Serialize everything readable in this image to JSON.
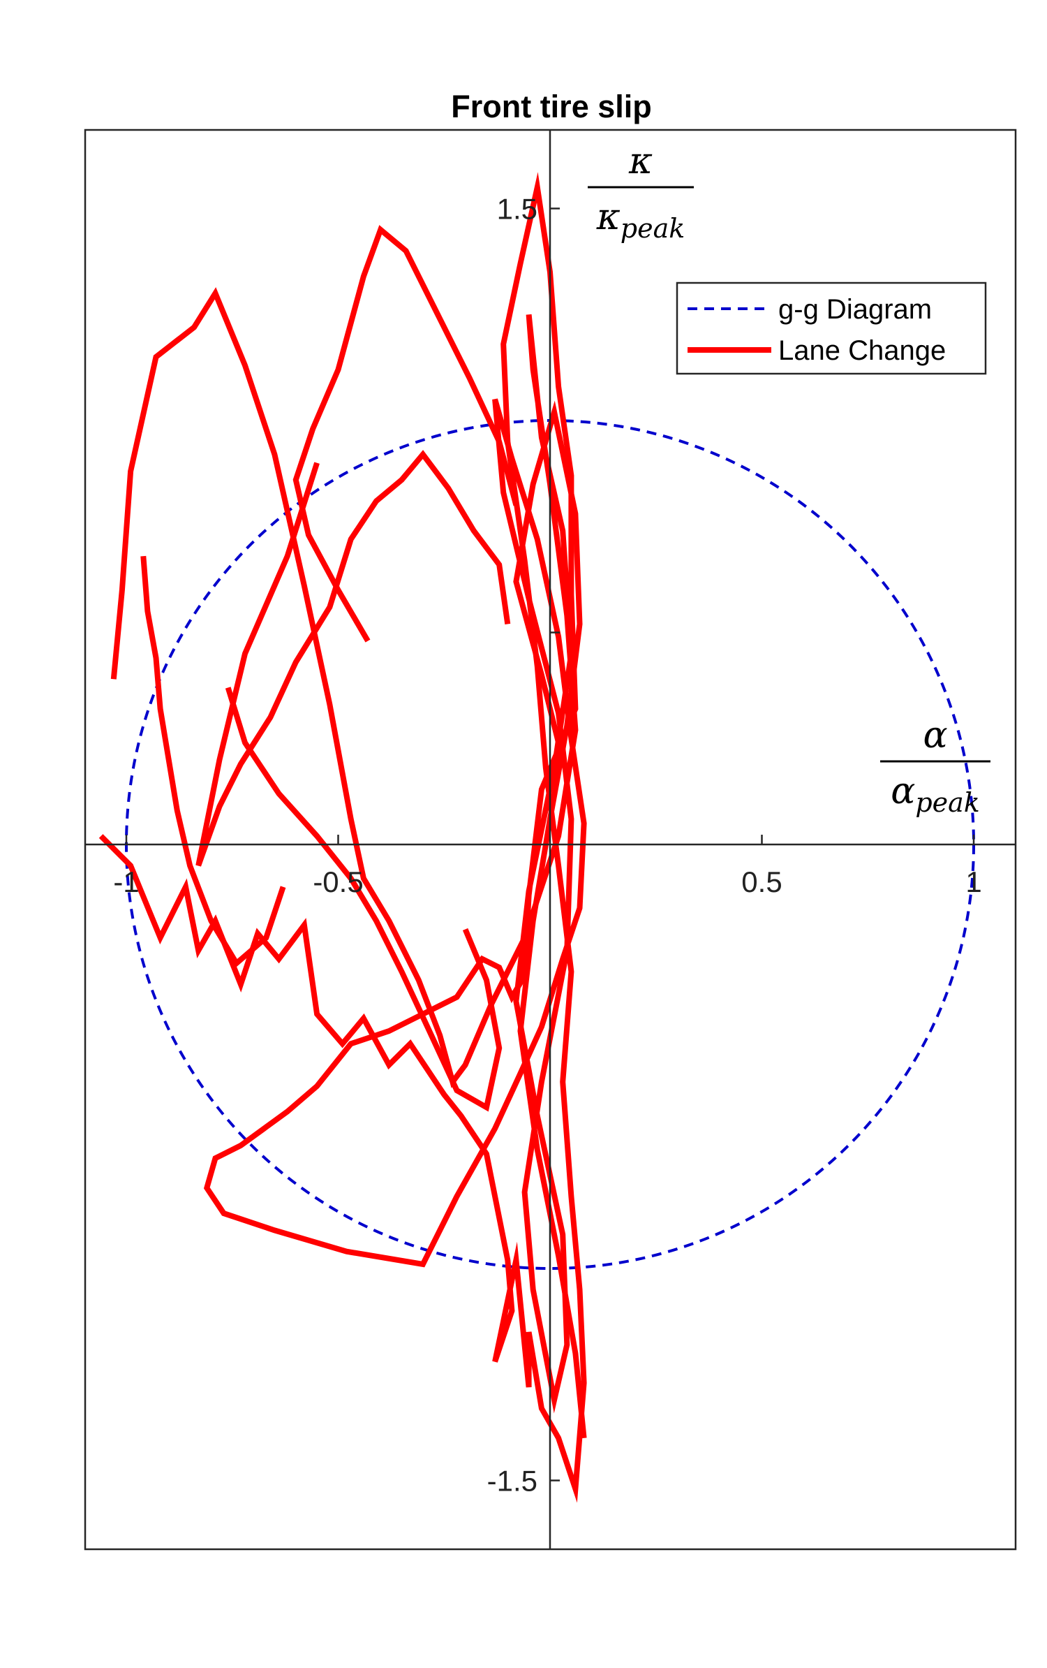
{
  "chart_data": {
    "type": "line",
    "title": "Front tire slip",
    "xlabel": {
      "numerator": "α",
      "denominator_base": "α",
      "denominator_sub": "peak"
    },
    "ylabel": {
      "numerator": "κ",
      "denominator_base": "κ",
      "denominator_sub": "peak"
    },
    "xlim": [
      -1.1,
      1.1
    ],
    "ylim": [
      -1.7,
      1.7
    ],
    "axes_location": "origin",
    "grid": false,
    "legend_position": "top-right",
    "x_ticks": [
      {
        "value": -1,
        "label": "-1"
      },
      {
        "value": -0.5,
        "label": "-0.5"
      },
      {
        "value": 0.5,
        "label": "0.5"
      },
      {
        "value": 1,
        "label": "1"
      }
    ],
    "y_ticks": [
      {
        "value": 1.5,
        "label": "1.5"
      },
      {
        "value": 0.5,
        "label": ""
      },
      {
        "value": -1.5,
        "label": "-1.5"
      }
    ],
    "series": [
      {
        "name": "g-g Diagram",
        "style": "dashed",
        "color": "#0000cc",
        "shape": "ellipse",
        "center": [
          0.0,
          0.0
        ],
        "radius_x": 1.0,
        "radius_y": 1.0
      },
      {
        "name": "Lane Change",
        "style": "solid",
        "color": "#ff0000",
        "x": [
          -1.06,
          -0.99,
          -0.92,
          -0.86,
          -0.83,
          -0.79,
          -0.73,
          -0.69,
          -0.64,
          -0.58,
          -0.55,
          -0.49,
          -0.44,
          -0.38,
          -0.33,
          -0.25,
          -0.21,
          -0.15,
          -0.1,
          -0.09,
          -0.13,
          -0.08,
          -0.05,
          -0.05,
          -0.02,
          0.02,
          0.06,
          0.08,
          0.07,
          0.05,
          0.03,
          0.05,
          0.02,
          -0.01,
          -0.03,
          -0.06,
          -0.1,
          -0.11,
          -0.07,
          -0.03,
          0.0,
          0.02,
          0.05,
          0.05,
          0.06,
          -0.02,
          -0.05,
          -0.06,
          -0.09,
          -0.12,
          -0.16,
          -0.22,
          -0.3,
          -0.38,
          -0.47,
          -0.55,
          -0.62,
          -0.73,
          -0.79,
          -0.81,
          -0.77,
          -0.65,
          -0.48,
          -0.3,
          -0.22,
          -0.13,
          -0.07,
          -0.02,
          0.03,
          0.07,
          0.08,
          0.05,
          0.02,
          -0.03,
          -0.09,
          -0.13,
          -0.11,
          -0.05,
          0.02,
          0.05,
          0.04,
          -0.02,
          -0.06,
          -0.04,
          0.01,
          0.04,
          0.03,
          -0.03,
          -0.08,
          -0.05,
          0.01,
          0.05,
          0.03,
          -0.02,
          -0.05,
          -0.04,
          0.0,
          0.04,
          0.06,
          0.02,
          -0.06,
          -0.14,
          -0.2,
          -0.23,
          -0.26,
          -0.31,
          -0.38,
          -0.44,
          -0.47,
          -0.52,
          -0.58,
          -0.65,
          -0.72,
          -0.79,
          -0.84,
          -0.93,
          -0.99,
          -1.01,
          -1.03
        ],
        "y": [
          0.02,
          -0.05,
          -0.22,
          -0.1,
          -0.25,
          -0.18,
          -0.33,
          -0.21,
          -0.27,
          -0.19,
          -0.4,
          -0.47,
          -0.41,
          -0.52,
          -0.47,
          -0.59,
          -0.64,
          -0.73,
          -0.98,
          -1.1,
          -1.22,
          -0.98,
          -1.28,
          -1.15,
          -1.33,
          -1.4,
          -1.52,
          -1.27,
          -1.05,
          -0.83,
          -0.56,
          -0.3,
          -0.05,
          0.18,
          0.42,
          0.67,
          0.95,
          1.18,
          1.37,
          1.55,
          1.35,
          1.08,
          0.87,
          0.59,
          0.32,
          0.13,
          -0.12,
          -0.31,
          -0.36,
          -0.29,
          -0.27,
          -0.36,
          -0.4,
          -0.44,
          -0.47,
          -0.57,
          -0.63,
          -0.71,
          -0.74,
          -0.81,
          -0.87,
          -0.91,
          -0.96,
          -0.99,
          -0.83,
          -0.67,
          -0.54,
          -0.43,
          -0.27,
          -0.15,
          0.05,
          0.25,
          0.49,
          0.72,
          0.91,
          1.05,
          0.83,
          0.58,
          0.31,
          0.06,
          -0.25,
          -0.56,
          -0.82,
          -1.05,
          -1.31,
          -1.18,
          -0.92,
          -0.64,
          -0.37,
          -0.11,
          0.18,
          0.45,
          0.74,
          0.96,
          1.25,
          1.12,
          0.85,
          0.54,
          0.27,
          0.02,
          -0.22,
          -0.38,
          -0.52,
          -0.56,
          -0.45,
          -0.32,
          -0.18,
          -0.08,
          0.06,
          0.33,
          0.61,
          0.92,
          1.13,
          1.3,
          1.22,
          1.15,
          0.88,
          0.6,
          0.39
        ],
        "extra_paths": [
          {
            "x": [
              -0.55,
              -0.62,
              -0.72,
              -0.78,
              -0.83,
              -0.78,
              -0.73,
              -0.66,
              -0.6,
              -0.52,
              -0.47,
              -0.41,
              -0.35,
              -0.3,
              -0.24,
              -0.18,
              -0.12,
              -0.1
            ],
            "y": [
              0.9,
              0.68,
              0.45,
              0.2,
              -0.05,
              0.09,
              0.19,
              0.3,
              0.43,
              0.56,
              0.72,
              0.81,
              0.86,
              0.92,
              0.84,
              0.74,
              0.66,
              0.52
            ]
          },
          {
            "x": [
              -0.43,
              -0.5,
              -0.57,
              -0.6,
              -0.56,
              -0.5,
              -0.44,
              -0.4,
              -0.34,
              -0.27,
              -0.19,
              -0.12,
              -0.08
            ],
            "y": [
              0.48,
              0.6,
              0.73,
              0.86,
              0.98,
              1.12,
              1.34,
              1.45,
              1.4,
              1.26,
              1.1,
              0.95,
              0.8
            ]
          },
          {
            "x": [
              -0.2,
              -0.15,
              -0.12,
              -0.15,
              -0.22,
              -0.28,
              -0.35,
              -0.41,
              -0.47,
              -0.55,
              -0.64,
              -0.72,
              -0.76
            ],
            "y": [
              -0.2,
              -0.32,
              -0.48,
              -0.62,
              -0.58,
              -0.45,
              -0.3,
              -0.18,
              -0.08,
              0.02,
              0.12,
              0.24,
              0.37
            ]
          },
          {
            "x": [
              -0.63,
              -0.67,
              -0.74,
              -0.8,
              -0.85,
              -0.88,
              -0.9,
              -0.92,
              -0.93,
              -0.95,
              -0.96
            ],
            "y": [
              -0.1,
              -0.22,
              -0.28,
              -0.18,
              -0.05,
              0.08,
              0.2,
              0.32,
              0.44,
              0.55,
              0.68
            ]
          },
          {
            "x": [
              0.03,
              -0.02,
              -0.08,
              -0.04,
              0.01,
              0.06,
              0.07,
              0.04,
              0.0,
              -0.04,
              -0.07,
              -0.03,
              0.02,
              0.06,
              0.08
            ],
            "y": [
              0.2,
              0.4,
              0.62,
              0.85,
              1.02,
              0.78,
              0.52,
              0.28,
              0.06,
              -0.18,
              -0.44,
              -0.72,
              -0.97,
              -1.2,
              -1.4
            ]
          }
        ]
      }
    ]
  }
}
